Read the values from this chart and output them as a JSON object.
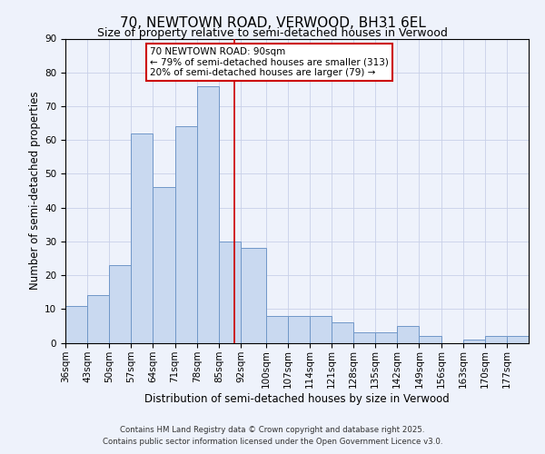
{
  "title": "70, NEWTOWN ROAD, VERWOOD, BH31 6EL",
  "subtitle": "Size of property relative to semi-detached houses in Verwood",
  "xlabel": "Distribution of semi-detached houses by size in Verwood",
  "ylabel": "Number of semi-detached properties",
  "bin_labels": [
    "36sqm",
    "43sqm",
    "50sqm",
    "57sqm",
    "64sqm",
    "71sqm",
    "78sqm",
    "85sqm",
    "92sqm",
    "100sqm",
    "107sqm",
    "114sqm",
    "121sqm",
    "128sqm",
    "135sqm",
    "142sqm",
    "149sqm",
    "156sqm",
    "163sqm",
    "170sqm",
    "177sqm"
  ],
  "bin_edges": [
    36,
    43,
    50,
    57,
    64,
    71,
    78,
    85,
    92,
    100,
    107,
    114,
    121,
    128,
    135,
    142,
    149,
    156,
    163,
    170,
    177,
    184
  ],
  "bar_heights": [
    11,
    14,
    23,
    62,
    46,
    64,
    76,
    30,
    28,
    8,
    8,
    8,
    6,
    3,
    3,
    5,
    2,
    0,
    1,
    2,
    2
  ],
  "bar_facecolor": "#c9d9f0",
  "bar_edgecolor": "#7097c8",
  "ylim": [
    0,
    90
  ],
  "yticks": [
    0,
    10,
    20,
    30,
    40,
    50,
    60,
    70,
    80,
    90
  ],
  "vline_x": 90,
  "vline_color": "#cc0000",
  "annotation_title": "70 NEWTOWN ROAD: 90sqm",
  "annotation_line1": "← 79% of semi-detached houses are smaller (313)",
  "annotation_line2": "20% of semi-detached houses are larger (79) →",
  "annotation_box_color": "#cc0000",
  "annotation_box_facecolor": "#ffffff",
  "bg_color": "#eef2fb",
  "grid_color": "#c8d0e8",
  "footer1": "Contains HM Land Registry data © Crown copyright and database right 2025.",
  "footer2": "Contains public sector information licensed under the Open Government Licence v3.0.",
  "title_fontsize": 11,
  "subtitle_fontsize": 9,
  "tick_fontsize": 7.5,
  "axis_label_fontsize": 8.5
}
